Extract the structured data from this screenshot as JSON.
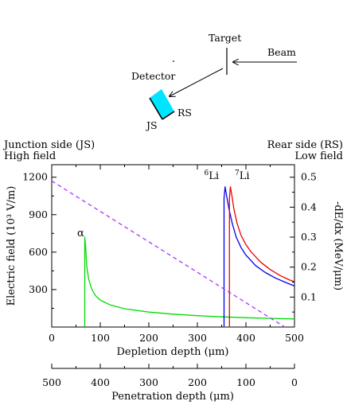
{
  "schematic": {
    "target_label": "Target",
    "beam_label": "Beam",
    "detector_label": "Detector",
    "js_label": "JS",
    "rs_label": "RS",
    "detector_color": "#00e5ff"
  },
  "corner_labels": {
    "left_line1": "Junction side (JS)",
    "left_line2": "High field",
    "right_line1": "Rear side (RS)",
    "right_line2": "Low field"
  },
  "chart_data": {
    "type": "line",
    "xlabel": "Depletion depth (μm)",
    "xlim": [
      0,
      500
    ],
    "x_ticks": [
      "0",
      "100",
      "200",
      "300",
      "400",
      "500"
    ],
    "ylabel_left": "Electric field (10³ V/m)",
    "ylim_left": [
      0,
      1300
    ],
    "y_left_ticks": [
      "300",
      "600",
      "900",
      "1200"
    ],
    "ylabel_right": "-dE/dx (MeV/μm)",
    "ylim_right": [
      0,
      0.5417
    ],
    "y_right_ticks": [
      "0.1",
      "0.2",
      "0.3",
      "0.4",
      "0.5"
    ],
    "x2label": "Penetration depth (μm)",
    "x2_ticks": [
      "500",
      "400",
      "300",
      "200",
      "100",
      "0"
    ],
    "grid": false,
    "series": [
      {
        "name": "α",
        "axis": "right",
        "color": "#00dd00",
        "x": [
          68,
          68,
          70,
          72,
          76,
          82,
          90,
          100,
          120,
          150,
          200,
          250,
          300,
          350,
          400,
          450,
          500
        ],
        "y": [
          0.002,
          0.3,
          0.265,
          0.205,
          0.16,
          0.128,
          0.105,
          0.09,
          0.074,
          0.061,
          0.05,
          0.043,
          0.038,
          0.034,
          0.031,
          0.029,
          0.027
        ]
      },
      {
        "name": "6Li",
        "label_sup": "6",
        "label_main": "Li",
        "axis": "right",
        "color": "#0000ee",
        "x": [
          355,
          355,
          357,
          360,
          365,
          372,
          380,
          390,
          400,
          420,
          440,
          460,
          480,
          500
        ],
        "y": [
          0.002,
          0.43,
          0.468,
          0.44,
          0.395,
          0.345,
          0.3,
          0.265,
          0.24,
          0.205,
          0.182,
          0.164,
          0.15,
          0.137
        ]
      },
      {
        "name": "7Li",
        "label_sup": "7",
        "label_main": "Li",
        "axis": "right",
        "color": "#ee0000",
        "x": [
          366,
          366,
          368,
          371,
          375,
          382,
          390,
          400,
          410,
          430,
          450,
          470,
          490,
          500
        ],
        "y": [
          0.002,
          0.43,
          0.468,
          0.44,
          0.395,
          0.345,
          0.306,
          0.275,
          0.252,
          0.217,
          0.192,
          0.172,
          0.157,
          0.151
        ]
      },
      {
        "name": "Electric field",
        "axis": "left",
        "color": "#aa33ff",
        "dash": true,
        "x": [
          0,
          480
        ],
        "y": [
          1170,
          0
        ]
      }
    ]
  }
}
